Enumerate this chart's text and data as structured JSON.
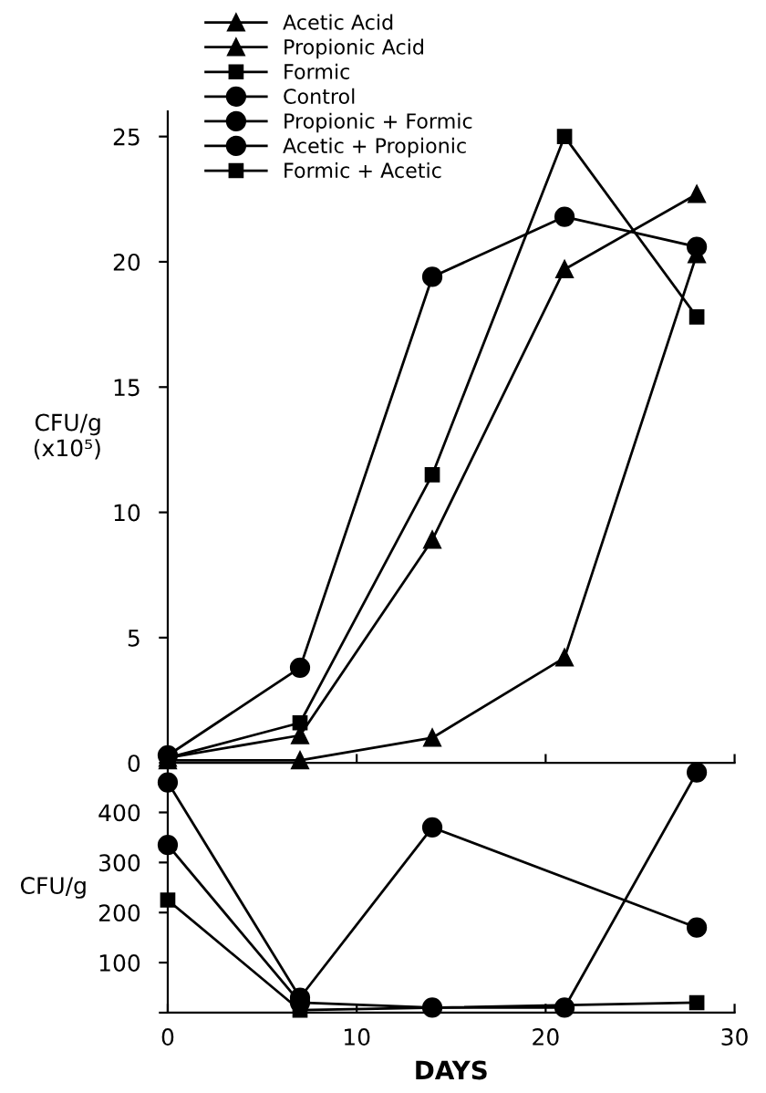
{
  "chart_data": [
    {
      "type": "line",
      "ylabel": "CFU/g\n(x10⁵)",
      "x": [
        0,
        7,
        14,
        21,
        28
      ],
      "xlim": [
        0,
        30
      ],
      "xticks": [
        0,
        10,
        20,
        30
      ],
      "ylim": [
        0,
        26
      ],
      "yticks": [
        0,
        5,
        10,
        15,
        20,
        25
      ],
      "tick_labels": "y",
      "legend": "top left",
      "grid": false,
      "series": [
        {
          "name": "Acetic Acid",
          "color": "#000000",
          "marker": "triangle",
          "values": [
            0.2,
            1.1,
            8.9,
            19.7,
            22.7
          ]
        },
        {
          "name": "Propionic Acid",
          "color": "#000000",
          "marker": "triangle",
          "values": [
            0.1,
            0.1,
            1.0,
            4.2,
            20.3
          ]
        },
        {
          "name": "Formic",
          "color": "#000000",
          "marker": "square",
          "values": [
            0.2,
            1.6,
            11.5,
            25.0,
            17.8
          ]
        },
        {
          "name": "Control",
          "color": "#000000",
          "marker": "circle",
          "values": [
            0.3,
            3.8,
            19.4,
            21.8,
            20.6
          ]
        }
      ]
    },
    {
      "type": "line",
      "ylabel": "CFU/g",
      "xlabel": "DAYS",
      "xlim": [
        0,
        30
      ],
      "xticks": [
        0,
        10,
        20,
        30
      ],
      "ylim": [
        0,
        500
      ],
      "yticks": [
        {
          "value": 0,
          "label": null
        },
        100,
        200,
        300,
        400
      ],
      "legend": "top left",
      "grid": false,
      "series": [
        {
          "name": "Propionic + Formic",
          "color": "#000000",
          "marker": "circle",
          "x": [
            0,
            7,
            14,
            28
          ],
          "values": [
            460,
            30,
            370,
            170
          ]
        },
        {
          "name": "Acetic + Propionic",
          "color": "#000000",
          "marker": "circle",
          "x": [
            0,
            7,
            14,
            21,
            28
          ],
          "values": [
            335,
            20,
            10,
            10,
            480
          ]
        },
        {
          "name": "Formic + Acetic",
          "color": "#000000",
          "marker": "square",
          "x": [
            0,
            7,
            28
          ],
          "values": [
            225,
            5,
            20
          ]
        }
      ]
    }
  ]
}
